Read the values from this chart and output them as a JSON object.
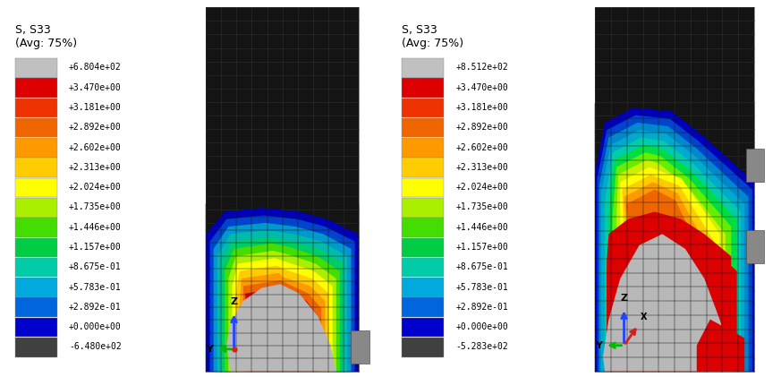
{
  "panel_a": {
    "title_line1": "S, S33",
    "title_line2": "(Avg: 75%)",
    "labels": [
      "+6.804e+02",
      "+3.470e+00",
      "+3.181e+00",
      "+2.892e+00",
      "+2.602e+00",
      "+2.313e+00",
      "+2.024e+00",
      "+1.735e+00",
      "+1.446e+00",
      "+1.157e+00",
      "+8.675e-01",
      "+5.783e-01",
      "+2.892e-01",
      "+0.000e+00",
      "-6.480e+02"
    ],
    "swatch_colors": [
      "#c0c0c0",
      "#dd0000",
      "#ee3300",
      "#ee6600",
      "#ff9900",
      "#ffcc00",
      "#ffff00",
      "#aaee00",
      "#44dd00",
      "#00cc44",
      "#00ccaa",
      "#00aadd",
      "#0066dd",
      "#0000cc",
      "#404040"
    ]
  },
  "panel_b": {
    "title_line1": "S, S33",
    "title_line2": "(Avg: 75%)",
    "labels": [
      "+8.512e+02",
      "+3.470e+00",
      "+3.181e+00",
      "+2.892e+00",
      "+2.602e+00",
      "+2.313e+00",
      "+2.024e+00",
      "+1.735e+00",
      "+1.446e+00",
      "+1.157e+00",
      "+8.675e-01",
      "+5.783e-01",
      "+2.892e-01",
      "+0.000e+00",
      "-5.283e+02"
    ],
    "swatch_colors": [
      "#c0c0c0",
      "#dd0000",
      "#ee3300",
      "#ee6600",
      "#ff9900",
      "#ffcc00",
      "#ffff00",
      "#aaee00",
      "#44dd00",
      "#00cc44",
      "#00ccaa",
      "#00aadd",
      "#0066dd",
      "#0000cc",
      "#404040"
    ]
  },
  "bg_color": "#ffffff",
  "dark_bg": "#111111",
  "mesh_color": "#2a2a2a",
  "mesh_line_color": "#3a3a3a"
}
